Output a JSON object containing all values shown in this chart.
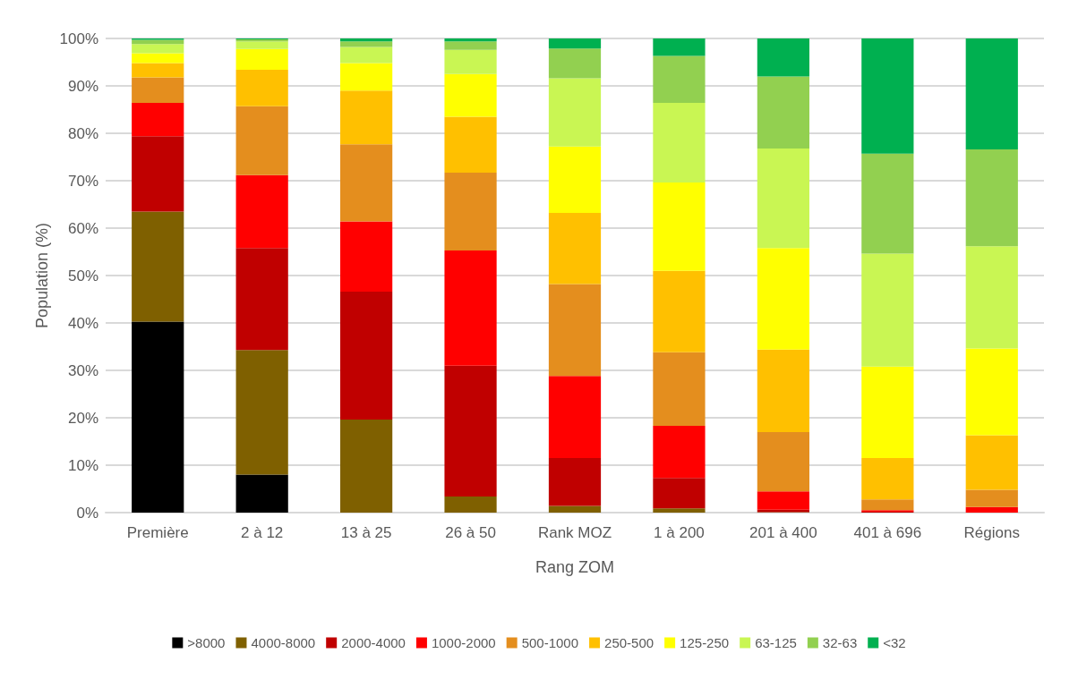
{
  "chart_data": {
    "type": "bar",
    "stacked": true,
    "xlabel": "Rang ZOM",
    "ylabel": "Population (%)",
    "categories": [
      "Première",
      "2 à 12",
      "13 à 25",
      "26 à 50",
      "Rank MOZ",
      "1 à 200",
      "201 à 400",
      "401 à 696",
      "Régions"
    ],
    "ylim": [
      0,
      100
    ],
    "yticks": [
      {
        "value": 0,
        "label": "0%"
      },
      {
        "value": 10,
        "label": "10%"
      },
      {
        "value": 20,
        "label": "20%"
      },
      {
        "value": 30,
        "label": "30%"
      },
      {
        "value": 40,
        "label": "40%"
      },
      {
        "value": 50,
        "label": "50%"
      },
      {
        "value": 60,
        "label": "60%"
      },
      {
        "value": 70,
        "label": "70%"
      },
      {
        "value": 80,
        "label": "80%"
      },
      {
        "value": 90,
        "label": "90%"
      },
      {
        "value": 100,
        "label": "100%"
      }
    ],
    "grid": "y",
    "legend": "bottom",
    "series": [
      {
        "name": ">8000",
        "color": "#000000",
        "values": [
          40.3,
          8.0,
          0,
          0,
          0,
          0,
          0,
          0,
          0
        ]
      },
      {
        "name": "4000-8000",
        "color": "#7f6000",
        "values": [
          23.2,
          26.3,
          19.6,
          3.4,
          1.4,
          0.9,
          0.1,
          0,
          0
        ]
      },
      {
        "name": "2000-4000",
        "color": "#c00000",
        "values": [
          15.9,
          21.5,
          27.0,
          27.6,
          10.1,
          6.4,
          0.5,
          0.2,
          0
        ]
      },
      {
        "name": "1000-2000",
        "color": "#ff0000",
        "values": [
          7.0,
          15.4,
          14.8,
          24.3,
          17.3,
          11.0,
          3.9,
          0.3,
          1.2
        ]
      },
      {
        "name": "500-1000",
        "color": "#e48e1e",
        "values": [
          5.4,
          14.5,
          16.3,
          16.4,
          19.4,
          15.5,
          12.5,
          2.3,
          3.6
        ]
      },
      {
        "name": "250-500",
        "color": "#ffc000",
        "values": [
          3.0,
          7.7,
          11.3,
          11.8,
          15.0,
          17.2,
          17.4,
          8.7,
          11.5
        ]
      },
      {
        "name": "125-250",
        "color": "#ffff00",
        "values": [
          2.1,
          4.4,
          5.8,
          9.0,
          14.0,
          18.6,
          21.4,
          19.3,
          18.3
        ]
      },
      {
        "name": "63-125",
        "color": "#c9f653",
        "values": [
          1.9,
          1.6,
          3.4,
          5.1,
          14.4,
          16.8,
          21.0,
          23.8,
          21.6
        ]
      },
      {
        "name": "32-63",
        "color": "#92d050",
        "values": [
          0.9,
          0.4,
          1.2,
          1.8,
          6.3,
          9.9,
          15.2,
          21.1,
          20.4
        ]
      },
      {
        "name": "<32",
        "color": "#00b050",
        "values": [
          0.3,
          0.2,
          0.6,
          0.6,
          2.1,
          3.7,
          8.0,
          24.3,
          23.4
        ]
      }
    ]
  }
}
